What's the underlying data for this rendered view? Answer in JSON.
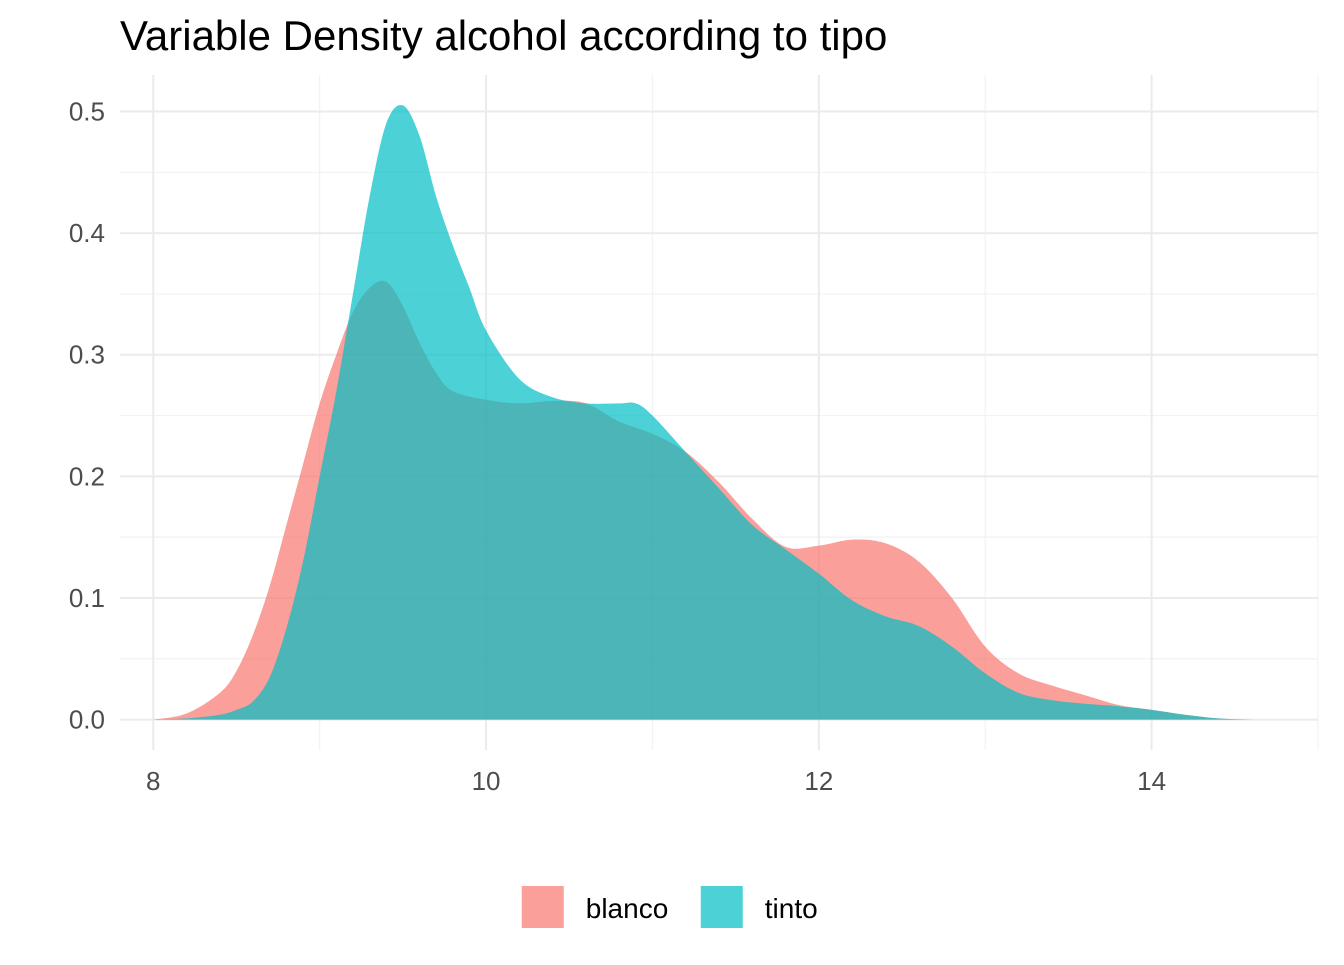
{
  "chart_data": {
    "type": "area",
    "title": "Variable Density alcohol according to tipo",
    "xlabel": "",
    "ylabel": "",
    "xlim": [
      7.8,
      15.0
    ],
    "ylim": [
      -0.025,
      0.53
    ],
    "x_ticks": [
      8,
      10,
      12,
      14
    ],
    "x_tick_labels": [
      "8",
      "10",
      "12",
      "14"
    ],
    "y_ticks": [
      0.0,
      0.1,
      0.2,
      0.3,
      0.4,
      0.5
    ],
    "y_tick_labels": [
      "0.0",
      "0.1",
      "0.2",
      "0.3",
      "0.4",
      "0.5"
    ],
    "grid": true,
    "legend_position": "bottom",
    "series": [
      {
        "name": "blanco",
        "color": "#F8766D",
        "opacity": 0.7,
        "points": [
          [
            8.0,
            0.0
          ],
          [
            8.2,
            0.005
          ],
          [
            8.4,
            0.022
          ],
          [
            8.5,
            0.04
          ],
          [
            8.6,
            0.07
          ],
          [
            8.7,
            0.11
          ],
          [
            8.8,
            0.16
          ],
          [
            8.9,
            0.21
          ],
          [
            9.0,
            0.26
          ],
          [
            9.1,
            0.3
          ],
          [
            9.2,
            0.335
          ],
          [
            9.3,
            0.355
          ],
          [
            9.4,
            0.36
          ],
          [
            9.5,
            0.34
          ],
          [
            9.6,
            0.31
          ],
          [
            9.7,
            0.285
          ],
          [
            9.8,
            0.27
          ],
          [
            10.0,
            0.263
          ],
          [
            10.2,
            0.26
          ],
          [
            10.4,
            0.262
          ],
          [
            10.6,
            0.26
          ],
          [
            10.8,
            0.245
          ],
          [
            11.0,
            0.235
          ],
          [
            11.2,
            0.22
          ],
          [
            11.4,
            0.195
          ],
          [
            11.6,
            0.165
          ],
          [
            11.8,
            0.142
          ],
          [
            12.0,
            0.143
          ],
          [
            12.2,
            0.148
          ],
          [
            12.4,
            0.145
          ],
          [
            12.6,
            0.13
          ],
          [
            12.8,
            0.1
          ],
          [
            13.0,
            0.06
          ],
          [
            13.2,
            0.038
          ],
          [
            13.4,
            0.028
          ],
          [
            13.6,
            0.02
          ],
          [
            13.8,
            0.012
          ],
          [
            14.0,
            0.008
          ],
          [
            14.2,
            0.004
          ],
          [
            14.4,
            0.001
          ],
          [
            14.6,
            0.0
          ]
        ]
      },
      {
        "name": "tinto",
        "color": "#00BFC4",
        "opacity": 0.7,
        "points": [
          [
            8.0,
            0.0
          ],
          [
            8.2,
            0.001
          ],
          [
            8.4,
            0.004
          ],
          [
            8.5,
            0.008
          ],
          [
            8.6,
            0.015
          ],
          [
            8.7,
            0.035
          ],
          [
            8.8,
            0.075
          ],
          [
            8.9,
            0.13
          ],
          [
            9.0,
            0.2
          ],
          [
            9.1,
            0.27
          ],
          [
            9.2,
            0.35
          ],
          [
            9.3,
            0.43
          ],
          [
            9.4,
            0.49
          ],
          [
            9.5,
            0.505
          ],
          [
            9.6,
            0.48
          ],
          [
            9.7,
            0.43
          ],
          [
            9.8,
            0.39
          ],
          [
            9.9,
            0.355
          ],
          [
            10.0,
            0.32
          ],
          [
            10.2,
            0.28
          ],
          [
            10.4,
            0.265
          ],
          [
            10.6,
            0.26
          ],
          [
            10.8,
            0.26
          ],
          [
            10.9,
            0.26
          ],
          [
            11.0,
            0.25
          ],
          [
            11.2,
            0.22
          ],
          [
            11.4,
            0.19
          ],
          [
            11.6,
            0.16
          ],
          [
            11.8,
            0.14
          ],
          [
            12.0,
            0.12
          ],
          [
            12.2,
            0.098
          ],
          [
            12.4,
            0.085
          ],
          [
            12.6,
            0.077
          ],
          [
            12.8,
            0.06
          ],
          [
            13.0,
            0.038
          ],
          [
            13.2,
            0.022
          ],
          [
            13.4,
            0.016
          ],
          [
            13.6,
            0.013
          ],
          [
            13.8,
            0.011
          ],
          [
            14.0,
            0.008
          ],
          [
            14.2,
            0.004
          ],
          [
            14.4,
            0.001
          ],
          [
            14.6,
            0.0
          ],
          [
            14.9,
            0.0
          ]
        ]
      }
    ]
  }
}
